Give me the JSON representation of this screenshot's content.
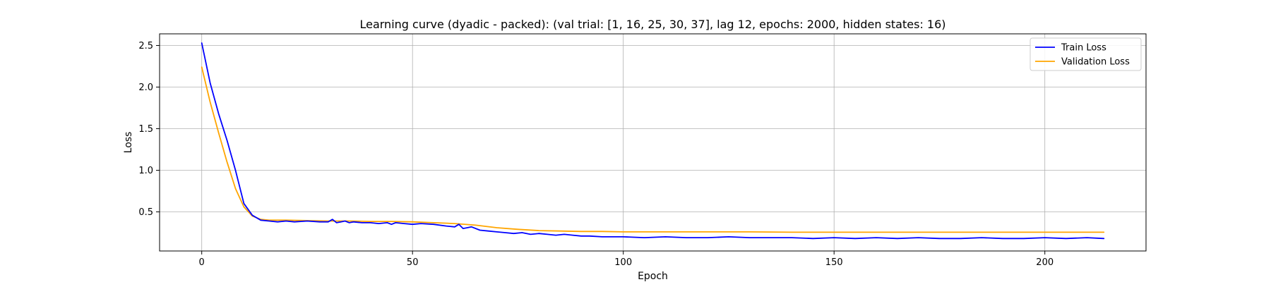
{
  "chart_data": {
    "type": "line",
    "title": "Learning curve (dyadic - packed): (val trial: [1, 16, 25, 30, 37], lag 12, epochs: 2000, hidden states: 16)",
    "xlabel": "Epoch",
    "ylabel": "Loss",
    "xlim": [
      -10,
      224
    ],
    "ylim": [
      0.03,
      2.64
    ],
    "xticks": [
      0,
      50,
      100,
      150,
      200
    ],
    "yticks": [
      0.5,
      1.0,
      1.5,
      2.0,
      2.5
    ],
    "xtick_labels": [
      "0",
      "50",
      "100",
      "150",
      "200"
    ],
    "ytick_labels": [
      "0.5",
      "1.0",
      "1.5",
      "2.0",
      "2.5"
    ],
    "grid": true,
    "legend_position": "top-right",
    "series": [
      {
        "name": "Train Loss",
        "color": "#0000ff",
        "x": [
          0,
          2,
          4,
          6,
          8,
          10,
          12,
          14,
          16,
          18,
          20,
          22,
          25,
          28,
          30,
          31,
          32,
          33,
          34,
          35,
          36,
          38,
          40,
          42,
          44,
          45,
          46,
          48,
          50,
          52,
          55,
          58,
          60,
          61,
          62,
          63,
          64,
          66,
          68,
          70,
          72,
          74,
          76,
          78,
          80,
          82,
          84,
          86,
          88,
          90,
          92,
          95,
          100,
          105,
          110,
          115,
          120,
          125,
          130,
          135,
          140,
          145,
          150,
          155,
          160,
          165,
          170,
          175,
          180,
          185,
          190,
          195,
          200,
          205,
          210,
          214
        ],
        "y": [
          2.53,
          2.05,
          1.68,
          1.36,
          1.0,
          0.6,
          0.46,
          0.4,
          0.39,
          0.38,
          0.39,
          0.38,
          0.39,
          0.38,
          0.38,
          0.41,
          0.37,
          0.38,
          0.39,
          0.37,
          0.38,
          0.37,
          0.37,
          0.36,
          0.37,
          0.35,
          0.37,
          0.36,
          0.35,
          0.36,
          0.35,
          0.33,
          0.32,
          0.35,
          0.3,
          0.31,
          0.32,
          0.28,
          0.27,
          0.26,
          0.25,
          0.24,
          0.25,
          0.23,
          0.24,
          0.23,
          0.22,
          0.23,
          0.22,
          0.21,
          0.21,
          0.2,
          0.2,
          0.19,
          0.2,
          0.19,
          0.19,
          0.2,
          0.19,
          0.19,
          0.19,
          0.18,
          0.19,
          0.18,
          0.19,
          0.18,
          0.19,
          0.18,
          0.18,
          0.19,
          0.18,
          0.18,
          0.19,
          0.18,
          0.19,
          0.18
        ]
      },
      {
        "name": "Validation Loss",
        "color": "#ffa500",
        "x": [
          0,
          2,
          4,
          6,
          8,
          10,
          12,
          14,
          16,
          20,
          25,
          30,
          35,
          40,
          45,
          50,
          55,
          60,
          65,
          70,
          75,
          80,
          85,
          90,
          95,
          100,
          110,
          120,
          130,
          140,
          150,
          160,
          170,
          180,
          190,
          200,
          210,
          214
        ],
        "y": [
          2.24,
          1.82,
          1.45,
          1.1,
          0.78,
          0.56,
          0.45,
          0.41,
          0.4,
          0.4,
          0.395,
          0.39,
          0.39,
          0.385,
          0.385,
          0.38,
          0.37,
          0.36,
          0.34,
          0.31,
          0.29,
          0.275,
          0.27,
          0.265,
          0.265,
          0.26,
          0.26,
          0.26,
          0.26,
          0.255,
          0.255,
          0.255,
          0.255,
          0.255,
          0.255,
          0.255,
          0.255,
          0.255
        ]
      }
    ]
  }
}
